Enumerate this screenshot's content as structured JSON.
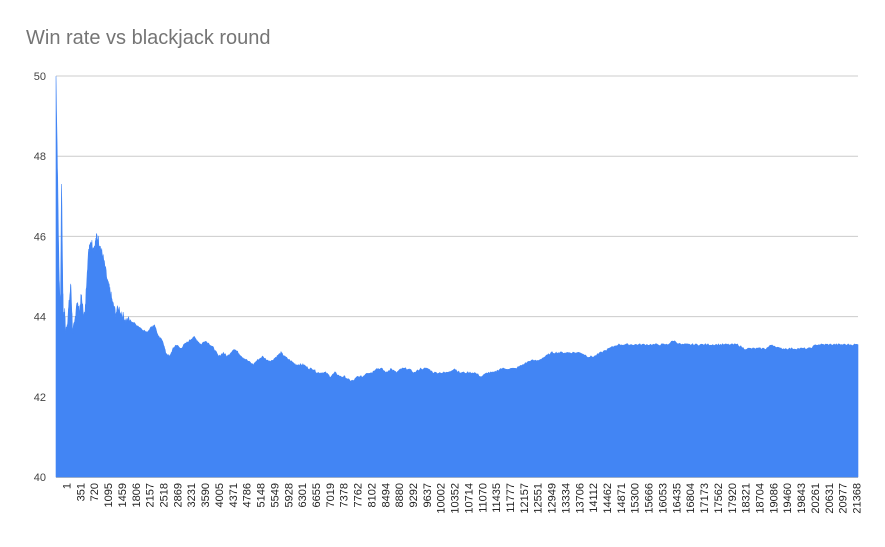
{
  "chart_data": {
    "type": "area",
    "title": "Win rate vs blackjack round",
    "xlabel": "",
    "ylabel": "",
    "ylim": [
      40,
      50
    ],
    "yticks": [
      "40",
      "42",
      "44",
      "46",
      "48",
      "50"
    ],
    "grid": true,
    "legend": "none",
    "series_color": "#4285f4",
    "x_tick_labels": [
      "1",
      "351",
      "720",
      "1095",
      "1459",
      "1806",
      "2157",
      "2518",
      "2869",
      "3231",
      "3590",
      "4005",
      "4371",
      "4786",
      "5148",
      "5549",
      "5928",
      "6301",
      "6655",
      "7019",
      "7378",
      "7762",
      "8102",
      "8494",
      "8880",
      "9292",
      "9637",
      "10002",
      "10352",
      "10714",
      "11070",
      "11435",
      "11777",
      "12157",
      "12551",
      "12949",
      "13334",
      "13706",
      "14112",
      "14462",
      "14871",
      "15300",
      "15666",
      "16053",
      "16435",
      "16804",
      "17173",
      "17562",
      "17920",
      "18321",
      "18704",
      "19086",
      "19460",
      "19843",
      "20261",
      "20631",
      "20977",
      "21368"
    ],
    "series": [
      {
        "x": [
          1,
          40,
          80,
          120,
          150,
          180,
          200,
          230,
          260,
          300,
          351,
          400,
          450,
          500,
          560,
          620,
          680,
          720,
          780,
          840,
          900,
          950,
          1000,
          1050,
          1095,
          1150,
          1200,
          1260,
          1320,
          1400,
          1459,
          1530,
          1600,
          1700,
          1806,
          1900,
          2000,
          2157,
          2300,
          2450,
          2518,
          2650,
          2750,
          2869,
          2950,
          3050,
          3150,
          3231,
          3350,
          3450,
          3590,
          3700,
          3800,
          3900,
          4005,
          4150,
          4250,
          4371,
          4500,
          4600,
          4786,
          4900,
          5000,
          5148,
          5300,
          5400,
          5549,
          5700,
          5800,
          5928,
          6050,
          6150,
          6301,
          6450,
          6550,
          6655,
          6800,
          6900,
          7019,
          7150,
          7250,
          7378,
          7500,
          7650,
          7762,
          7900,
          8000,
          8102,
          8250,
          8350,
          8494,
          8600,
          8750,
          8880,
          9000,
          9150,
          9292,
          9450,
          9637,
          9800,
          10002,
          10150,
          10352,
          10500,
          10714,
          10850,
          11070,
          11250,
          11435,
          11600,
          11777,
          11950,
          12157,
          12350,
          12551,
          12750,
          12949,
          13150,
          13334,
          13500,
          13706,
          13900,
          14112,
          14300,
          14462,
          14650,
          14871,
          15100,
          15300,
          15500,
          15666,
          15850,
          16053,
          16250,
          16435,
          16600,
          16804,
          17000,
          17173,
          17350,
          17562,
          17750,
          17920,
          18100,
          18321,
          18500,
          18704,
          18900,
          19086,
          19250,
          19460,
          19650,
          19843,
          20050,
          20261,
          20450,
          20631,
          20800,
          20977,
          21150,
          21368,
          21560
        ],
        "values": [
          50.0,
          47.8,
          45.2,
          44.1,
          47.4,
          45.0,
          43.9,
          44.2,
          43.6,
          43.8,
          44.3,
          44.8,
          43.6,
          43.8,
          44.4,
          44.1,
          44.5,
          44.2,
          44.0,
          45.2,
          45.8,
          45.9,
          45.7,
          45.8,
          46.0,
          45.9,
          45.7,
          45.5,
          45.2,
          44.8,
          44.6,
          44.3,
          44.1,
          44.2,
          44.0,
          43.9,
          43.9,
          43.8,
          43.7,
          43.6,
          43.7,
          43.8,
          43.5,
          43.4,
          43.1,
          43.0,
          43.2,
          43.3,
          43.2,
          43.3,
          43.4,
          43.5,
          43.4,
          43.3,
          43.4,
          43.3,
          43.2,
          43.0,
          43.1,
          43.0,
          43.2,
          43.1,
          43.0,
          42.9,
          42.8,
          42.9,
          43.0,
          42.9,
          42.9,
          43.0,
          43.1,
          43.0,
          42.9,
          42.8,
          42.8,
          42.8,
          42.7,
          42.7,
          42.6,
          42.6,
          42.6,
          42.5,
          42.6,
          42.5,
          42.5,
          42.4,
          42.4,
          42.5,
          42.5,
          42.6,
          42.6,
          42.7,
          42.7,
          42.6,
          42.7,
          42.6,
          42.7,
          42.7,
          42.6,
          42.7,
          42.7,
          42.6,
          42.6,
          42.6,
          42.7,
          42.6,
          42.6,
          42.6,
          42.5,
          42.6,
          42.6,
          42.7,
          42.7,
          42.7,
          42.8,
          42.9,
          42.9,
          43.0,
          43.1,
          43.1,
          43.1,
          43.1,
          43.1,
          43.0,
          43.0,
          43.1,
          43.2,
          43.3,
          43.3,
          43.3,
          43.3,
          43.3,
          43.3,
          43.3,
          43.3,
          43.4,
          43.3,
          43.3,
          43.3,
          43.3,
          43.3,
          43.3,
          43.3,
          43.3,
          43.3,
          43.2,
          43.2,
          43.2,
          43.2,
          43.3,
          43.2,
          43.2,
          43.2,
          43.2,
          43.2,
          43.3,
          43.3,
          43.3,
          43.3,
          43.3,
          43.3,
          43.3
        ]
      }
    ]
  }
}
